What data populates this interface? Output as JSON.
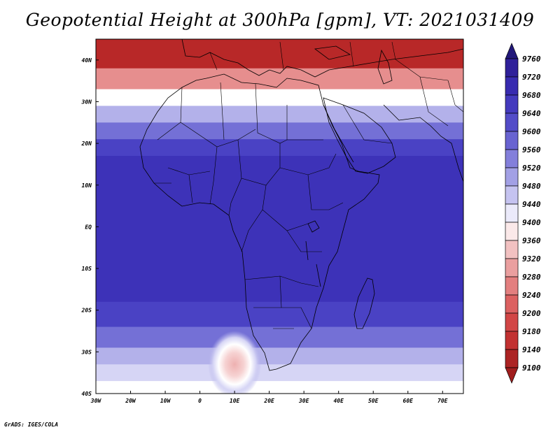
{
  "title": "Geopotential Height at 300hPa [gpm], VT: 2021031409",
  "credit": "GrADS: IGES/COLA",
  "map": {
    "region": "Africa",
    "lon_range": [
      -30,
      76
    ],
    "lat_range": [
      -40,
      45
    ],
    "lat_ticks": [
      {
        "value": 40,
        "label": "40N"
      },
      {
        "value": 30,
        "label": "30N"
      },
      {
        "value": 20,
        "label": "20N"
      },
      {
        "value": 10,
        "label": "10N"
      },
      {
        "value": 0,
        "label": "EQ"
      },
      {
        "value": -10,
        "label": "10S"
      },
      {
        "value": -20,
        "label": "20S"
      },
      {
        "value": -30,
        "label": "30S"
      },
      {
        "value": -40,
        "label": "40S"
      }
    ],
    "lon_ticks": [
      {
        "value": -30,
        "label": "30W"
      },
      {
        "value": -20,
        "label": "20W"
      },
      {
        "value": -10,
        "label": "10W"
      },
      {
        "value": 0,
        "label": "0"
      },
      {
        "value": 10,
        "label": "10E"
      },
      {
        "value": 20,
        "label": "20E"
      },
      {
        "value": 30,
        "label": "30E"
      },
      {
        "value": 40,
        "label": "40E"
      },
      {
        "value": 50,
        "label": "50E"
      },
      {
        "value": 60,
        "label": "60E"
      },
      {
        "value": 70,
        "label": "70E"
      }
    ],
    "field_bands": [
      {
        "lat_top": 45,
        "lat_bottom": 38,
        "level": 9140
      },
      {
        "lat_top": 38,
        "lat_bottom": 33,
        "level": 9280
      },
      {
        "lat_top": 33,
        "lat_bottom": 29,
        "level": 9400
      },
      {
        "lat_top": 29,
        "lat_bottom": 25,
        "level": 9480
      },
      {
        "lat_top": 25,
        "lat_bottom": 21,
        "level": 9560
      },
      {
        "lat_top": 21,
        "lat_bottom": 17,
        "level": 9640
      },
      {
        "lat_top": 17,
        "lat_bottom": -18,
        "level": 9680
      },
      {
        "lat_top": -18,
        "lat_bottom": -24,
        "level": 9640
      },
      {
        "lat_top": -24,
        "lat_bottom": -29,
        "level": 9560
      },
      {
        "lat_top": -29,
        "lat_bottom": -33,
        "level": 9480
      },
      {
        "lat_top": -33,
        "lat_bottom": -37,
        "level": 9440
      },
      {
        "lat_top": -37,
        "lat_bottom": -40,
        "level": 9400
      }
    ],
    "low_center": {
      "lon": 10,
      "lat": -33,
      "level": 9320
    }
  },
  "colorbar": {
    "levels": [
      {
        "label": "9760",
        "color": "#2a1c8c"
      },
      {
        "label": "9720",
        "color": "#3323a8"
      },
      {
        "label": "9680",
        "color": "#3d32b8"
      },
      {
        "label": "9640",
        "color": "#4a42c4"
      },
      {
        "label": "9600",
        "color": "#5c56cc"
      },
      {
        "label": "9560",
        "color": "#7470d6"
      },
      {
        "label": "9520",
        "color": "#918ee0"
      },
      {
        "label": "9480",
        "color": "#b3b1ea"
      },
      {
        "label": "9440",
        "color": "#d6d5f5"
      },
      {
        "label": "9400",
        "color": "#ffffff"
      },
      {
        "label": "9360",
        "color": "#f6d2d2"
      },
      {
        "label": "9320",
        "color": "#eeb0b0"
      },
      {
        "label": "9280",
        "color": "#e68e8e"
      },
      {
        "label": "9240",
        "color": "#df7070"
      },
      {
        "label": "9200",
        "color": "#d85252"
      },
      {
        "label": "9180",
        "color": "#cc3a3a"
      },
      {
        "label": "9140",
        "color": "#b82828"
      },
      {
        "label": "9100",
        "color": "#a01d1d"
      }
    ],
    "top_arrow_color": "#22187a",
    "bottom_arrow_color": "#a01d1d"
  }
}
